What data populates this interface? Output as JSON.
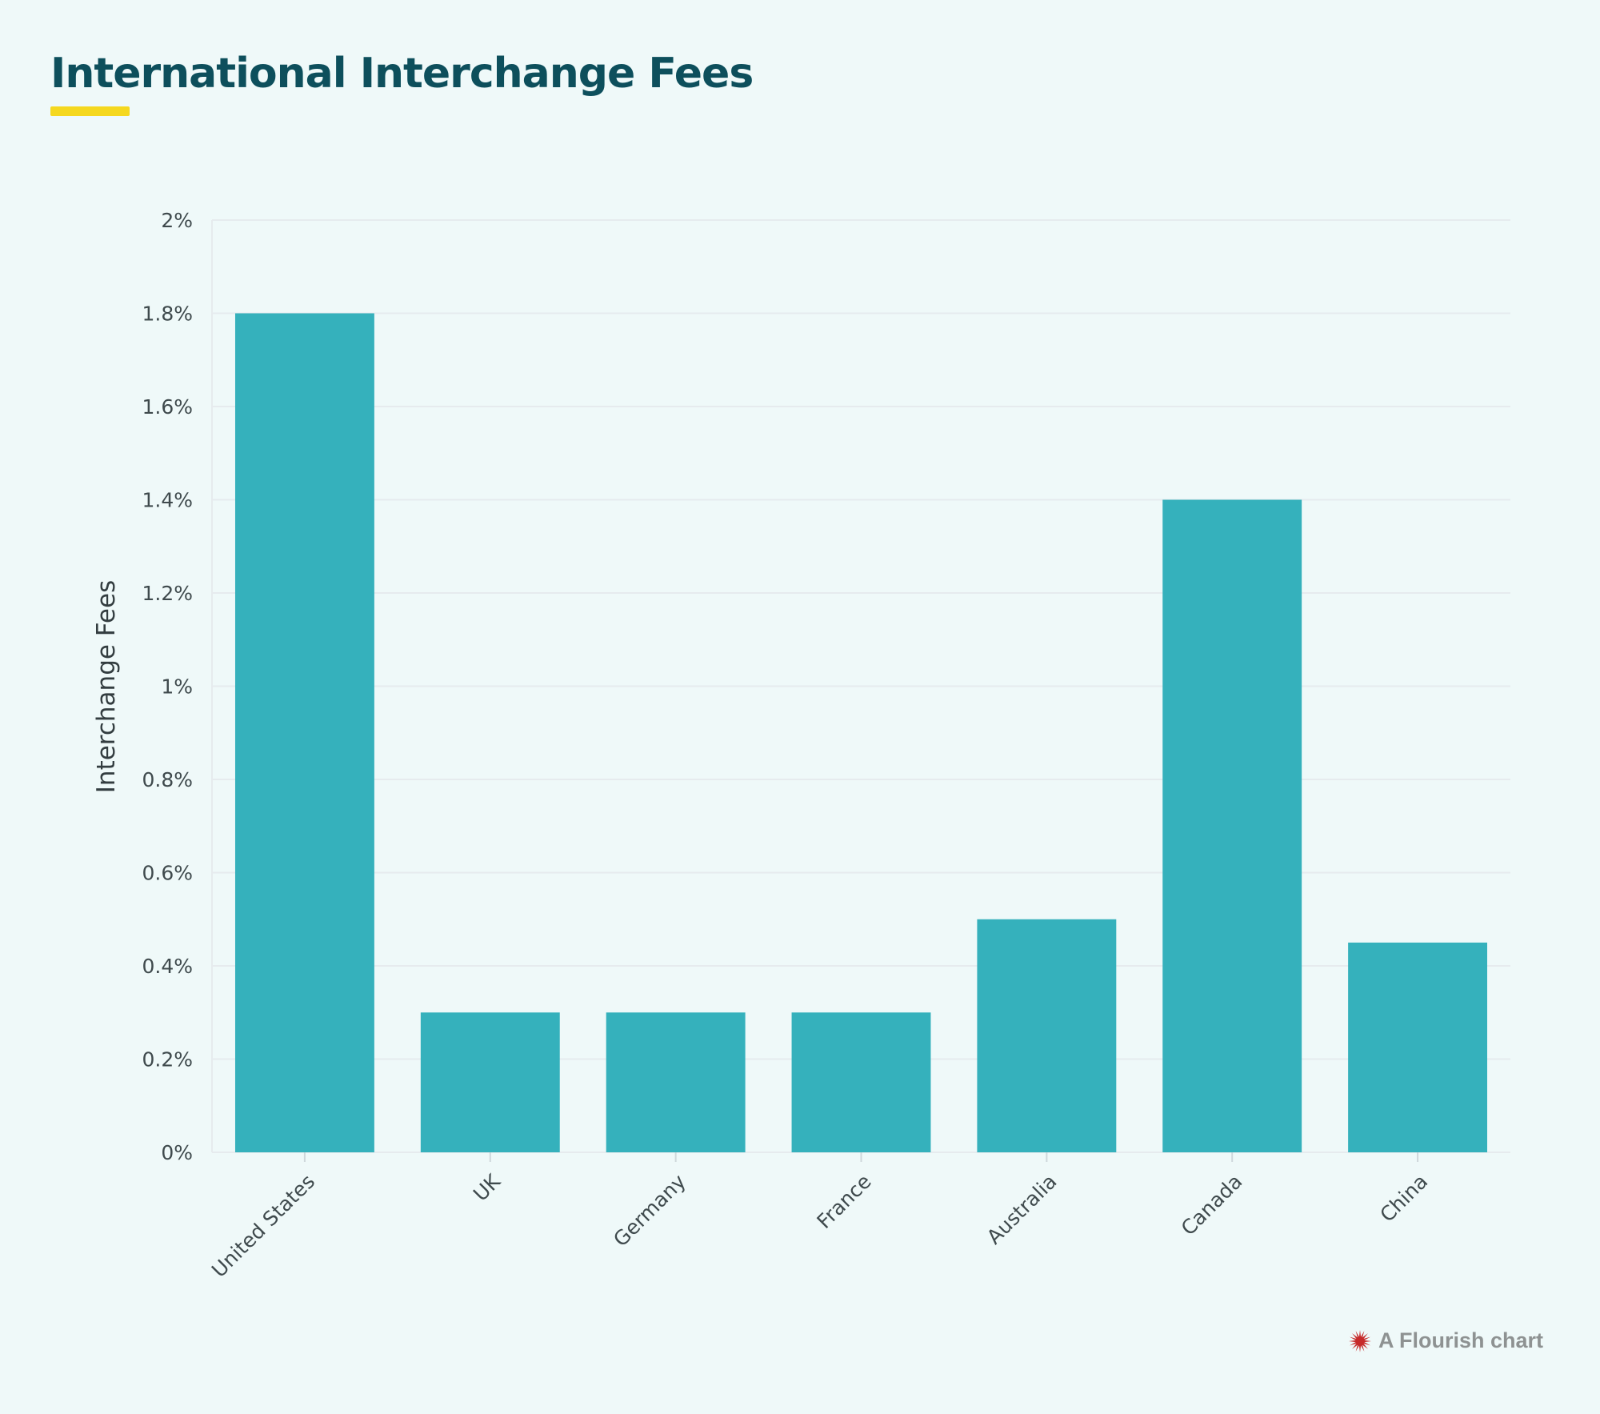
{
  "header": {
    "title": "International Interchange Fees"
  },
  "credit": {
    "text": "A Flourish chart",
    "icon": "flourish-burst-icon"
  },
  "colors": {
    "bar": "#35b1bc",
    "title": "#0d4f5c",
    "accent_underline": "#f5d81f",
    "background": "#eff9f9",
    "gridline": "#e6ebee",
    "credit_icon": "#c62a2a"
  },
  "chart_data": {
    "type": "bar",
    "title": "International Interchange Fees",
    "xlabel": "",
    "ylabel": "Interchange Fees",
    "categories": [
      "United States",
      "UK",
      "Germany",
      "France",
      "Australia",
      "Canada",
      "China"
    ],
    "values": [
      1.8,
      0.3,
      0.3,
      0.3,
      0.5,
      1.4,
      0.45
    ],
    "unit": "%",
    "ylim": [
      0,
      2
    ],
    "yticks": [
      {
        "value": 0,
        "label": "0%"
      },
      {
        "value": 0.2,
        "label": "0.2%"
      },
      {
        "value": 0.4,
        "label": "0.4%"
      },
      {
        "value": 0.6,
        "label": "0.6%"
      },
      {
        "value": 0.8,
        "label": "0.8%"
      },
      {
        "value": 1,
        "label": "1%"
      },
      {
        "value": 1.2,
        "label": "1.2%"
      },
      {
        "value": 1.4,
        "label": "1.4%"
      },
      {
        "value": 1.6,
        "label": "1.6%"
      },
      {
        "value": 1.8,
        "label": "1.8%"
      },
      {
        "value": 2,
        "label": "2%"
      }
    ],
    "grid": true,
    "legend": "none",
    "xtick_rotation": -45
  }
}
